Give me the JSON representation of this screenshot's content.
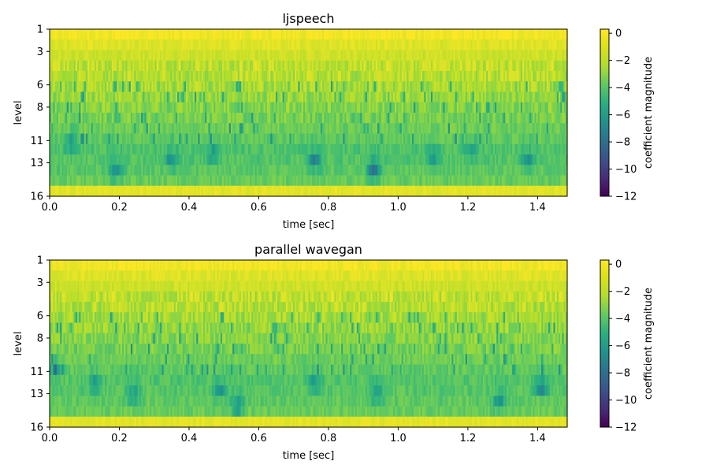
{
  "chart_data": [
    {
      "type": "heatmap",
      "title": "ljspeech",
      "xlabel": "time [sec]",
      "ylabel": "level",
      "xlim": [
        0,
        1.485
      ],
      "x_ticks": [
        "0.0",
        "0.2",
        "0.4",
        "0.6",
        "0.8",
        "1.0",
        "1.2",
        "1.4"
      ],
      "y_ticks": [
        "1",
        "3",
        "6",
        "8",
        "11",
        "13",
        "16"
      ],
      "levels": 16,
      "colormap": "viridis",
      "colorbar": {
        "label": "coefficient magnitude",
        "range": [
          -12,
          0.3
        ],
        "ticks": [
          "0",
          "−2",
          "−4",
          "−6",
          "−8",
          "−10",
          "−12"
        ]
      },
      "level_mean_magnitude": [
        0.1,
        -0.3,
        -0.6,
        -0.9,
        -1.1,
        -1.4,
        -1.7,
        -2.0,
        -2.3,
        -2.5,
        -2.8,
        -3.2,
        -3.1,
        -2.9,
        -2.6,
        -0.2
      ],
      "dips": [
        {
          "time": 0.06,
          "level": 11.5,
          "depth": -6.5
        },
        {
          "time": 0.19,
          "level": 14.3,
          "depth": -7.5
        },
        {
          "time": 0.35,
          "level": 13.2,
          "depth": -7.0
        },
        {
          "time": 0.47,
          "level": 12.5,
          "depth": -6.5
        },
        {
          "time": 0.76,
          "level": 13.3,
          "depth": -8.0
        },
        {
          "time": 0.93,
          "level": 14.2,
          "depth": -9.0
        },
        {
          "time": 1.1,
          "level": 12.7,
          "depth": -6.5
        },
        {
          "time": 1.21,
          "level": 12.3,
          "depth": -6.0
        },
        {
          "time": 1.37,
          "level": 13.3,
          "depth": -7.0
        }
      ]
    },
    {
      "type": "heatmap",
      "title": "parallel wavegan",
      "xlabel": "time [sec]",
      "ylabel": "level",
      "xlim": [
        0,
        1.485
      ],
      "x_ticks": [
        "0.0",
        "0.2",
        "0.4",
        "0.6",
        "0.8",
        "1.0",
        "1.2",
        "1.4"
      ],
      "y_ticks": [
        "1",
        "3",
        "6",
        "8",
        "11",
        "13",
        "16"
      ],
      "levels": 16,
      "colormap": "viridis",
      "colorbar": {
        "label": "coefficient magnitude",
        "range": [
          -12,
          0.3
        ],
        "ticks": [
          "0",
          "−2",
          "−4",
          "−6",
          "−8",
          "−10",
          "−12"
        ]
      },
      "level_mean_magnitude": [
        0.1,
        -0.3,
        -0.6,
        -0.9,
        -1.1,
        -1.4,
        -1.7,
        -2.0,
        -2.3,
        -2.5,
        -2.8,
        -3.1,
        -3.0,
        -2.8,
        -2.6,
        -0.2
      ],
      "dips": [
        {
          "time": 0.02,
          "level": 11.0,
          "depth": -6.0
        },
        {
          "time": 0.13,
          "level": 12.5,
          "depth": -6.5
        },
        {
          "time": 0.24,
          "level": 13.5,
          "depth": -6.5
        },
        {
          "time": 0.49,
          "level": 13.2,
          "depth": -6.5
        },
        {
          "time": 0.54,
          "level": 14.5,
          "depth": -7.5
        },
        {
          "time": 0.76,
          "level": 12.5,
          "depth": -7.0
        },
        {
          "time": 0.94,
          "level": 13.5,
          "depth": -6.5
        },
        {
          "time": 1.29,
          "level": 14.3,
          "depth": -7.0
        },
        {
          "time": 1.41,
          "level": 12.8,
          "depth": -7.5
        }
      ]
    }
  ]
}
